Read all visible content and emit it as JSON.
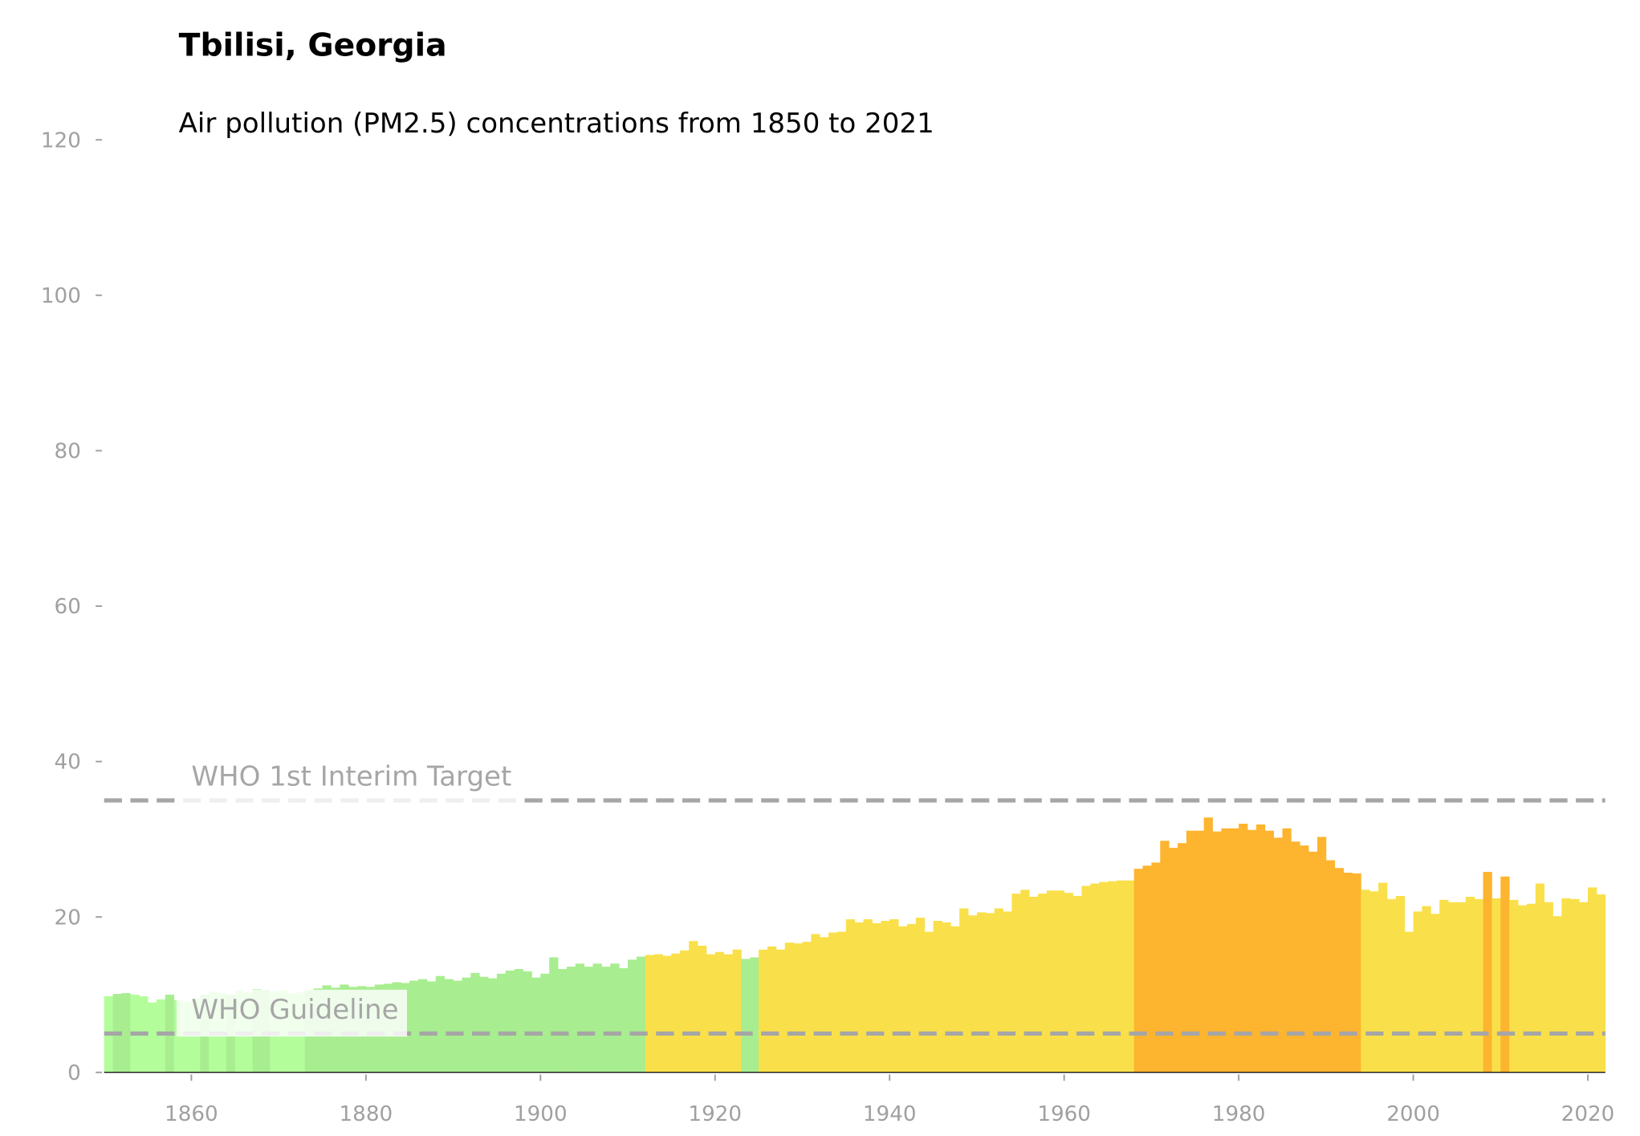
{
  "chart_data": {
    "type": "bar",
    "title": "Tbilisi, Georgia",
    "subtitle": "Air pollution (PM2.5) concentrations from 1850 to 2021",
    "x": [
      1850,
      1851,
      1852,
      1853,
      1854,
      1855,
      1856,
      1857,
      1858,
      1859,
      1860,
      1861,
      1862,
      1863,
      1864,
      1865,
      1866,
      1867,
      1868,
      1869,
      1870,
      1871,
      1872,
      1873,
      1874,
      1875,
      1876,
      1877,
      1878,
      1879,
      1880,
      1881,
      1882,
      1883,
      1884,
      1885,
      1886,
      1887,
      1888,
      1889,
      1890,
      1891,
      1892,
      1893,
      1894,
      1895,
      1896,
      1897,
      1898,
      1899,
      1900,
      1901,
      1902,
      1903,
      1904,
      1905,
      1906,
      1907,
      1908,
      1909,
      1910,
      1911,
      1912,
      1913,
      1914,
      1915,
      1916,
      1917,
      1918,
      1919,
      1920,
      1921,
      1922,
      1923,
      1924,
      1925,
      1926,
      1927,
      1928,
      1929,
      1930,
      1931,
      1932,
      1933,
      1934,
      1935,
      1936,
      1937,
      1938,
      1939,
      1940,
      1941,
      1942,
      1943,
      1944,
      1945,
      1946,
      1947,
      1948,
      1949,
      1950,
      1951,
      1952,
      1953,
      1954,
      1955,
      1956,
      1957,
      1958,
      1959,
      1960,
      1961,
      1962,
      1963,
      1964,
      1965,
      1966,
      1967,
      1968,
      1969,
      1970,
      1971,
      1972,
      1973,
      1974,
      1975,
      1976,
      1977,
      1978,
      1979,
      1980,
      1981,
      1982,
      1983,
      1984,
      1985,
      1986,
      1987,
      1988,
      1989,
      1990,
      1991,
      1992,
      1993,
      1994,
      1995,
      1996,
      1997,
      1998,
      1999,
      2000,
      2001,
      2002,
      2003,
      2004,
      2005,
      2006,
      2007,
      2008,
      2009,
      2010,
      2011,
      2012,
      2013,
      2014,
      2015,
      2016,
      2017,
      2018,
      2019,
      2020,
      2021
    ],
    "series": [
      {
        "values": [
          9.8,
          10.1,
          10.2,
          10.0,
          9.8,
          9.0,
          9.4,
          10.0,
          9.3,
          9.1,
          9.5,
          10.0,
          10.4,
          10.2,
          10.0,
          10.5,
          10.3,
          10.7,
          10.6,
          10.4,
          10.6,
          10.2,
          10.3,
          10.6,
          10.8,
          11.2,
          10.9,
          11.3,
          11.0,
          11.1,
          11.0,
          11.3,
          11.4,
          11.6,
          11.5,
          11.8,
          12.0,
          11.7,
          12.4,
          12.0,
          11.8,
          12.2,
          12.8,
          12.3,
          12.1,
          12.7,
          13.1,
          13.3,
          13.0,
          12.2,
          12.7,
          14.8,
          13.3,
          13.6,
          14.0,
          13.6,
          14.0,
          13.6,
          14.0,
          13.4,
          14.5,
          14.9,
          15.1,
          15.2,
          15.0,
          15.3,
          15.7,
          16.9,
          16.3,
          15.2,
          15.5,
          15.2,
          15.8,
          14.6,
          14.8,
          15.8,
          16.2,
          15.8,
          16.7,
          16.6,
          16.8,
          17.8,
          17.4,
          18.0,
          18.1,
          19.7,
          19.3,
          19.7,
          19.2,
          19.5,
          19.7,
          18.8,
          19.1,
          19.9,
          18.1,
          19.5,
          19.3,
          18.8,
          21.1,
          20.2,
          20.6,
          20.5,
          21.1,
          20.7,
          23.0,
          23.5,
          22.6,
          23.0,
          23.4,
          23.4,
          23.1,
          22.7,
          24.0,
          24.3,
          24.5,
          24.6,
          24.7,
          24.7,
          26.2,
          26.6,
          27.0,
          29.8,
          28.9,
          29.5,
          31.1,
          31.1,
          32.8,
          31.0,
          31.4,
          31.4,
          32.0,
          31.2,
          31.9,
          31.1,
          30.2,
          31.4,
          29.7,
          29.2,
          28.4,
          30.3,
          27.3,
          26.3,
          25.7,
          25.6,
          23.5,
          23.3,
          24.4,
          22.3,
          22.7,
          18.1,
          20.7,
          21.4,
          20.4,
          22.2,
          21.9,
          21.9,
          22.6,
          22.3,
          25.8,
          22.4,
          25.2,
          22.2,
          21.5,
          21.7,
          24.3,
          21.9,
          20.1,
          22.4,
          22.3,
          21.9,
          23.8,
          22.9
        ],
        "colors": [
          "#b3fd9b",
          "#a8ed8f",
          "#a8ed8f",
          "#b3fd9b",
          "#b3fd9b",
          "#b3fd9b",
          "#b3fd9b",
          "#a8ed8f",
          "#b3fd9b",
          "#b3fd9b",
          "#b3fd9b",
          "#a8ed8f",
          "#b3fd9b",
          "#b3fd9b",
          "#a8ed8f",
          "#b3fd9b",
          "#b3fd9b",
          "#a8ed8f",
          "#a8ed8f",
          "#b3fd9b",
          "#b3fd9b",
          "#b3fd9b",
          "#b3fd9b",
          "#a8ed8f",
          "#a8ed8f",
          "#a8ed8f",
          "#a8ed8f",
          "#a8ed8f",
          "#a8ed8f",
          "#a8ed8f",
          "#a8ed8f",
          "#a8ed8f",
          "#a8ed8f",
          "#a8ed8f",
          "#a8ed8f",
          "#a8ed8f",
          "#a8ed8f",
          "#a8ed8f",
          "#a8ed8f",
          "#a8ed8f",
          "#a8ed8f",
          "#a8ed8f",
          "#a8ed8f",
          "#a8ed8f",
          "#a8ed8f",
          "#a8ed8f",
          "#a8ed8f",
          "#a8ed8f",
          "#a8ed8f",
          "#a8ed8f",
          "#a8ed8f",
          "#a8ed8f",
          "#a8ed8f",
          "#a8ed8f",
          "#a8ed8f",
          "#a8ed8f",
          "#a8ed8f",
          "#a8ed8f",
          "#a8ed8f",
          "#a8ed8f",
          "#a8ed8f",
          "#a8ed8f",
          "#f9e04a",
          "#f9e04a",
          "#f9e04a",
          "#f9e04a",
          "#f9e04a",
          "#f9e04a",
          "#f9e04a",
          "#f9e04a",
          "#f9e04a",
          "#f9e04a",
          "#f9e04a",
          "#a8ed8f",
          "#a8ed8f",
          "#f9e04a",
          "#f9e04a",
          "#f9e04a",
          "#f9e04a",
          "#f9e04a",
          "#f9e04a",
          "#f9e04a",
          "#f9e04a",
          "#f9e04a",
          "#f9e04a",
          "#f9e04a",
          "#f9e04a",
          "#f9e04a",
          "#f9e04a",
          "#f9e04a",
          "#f9e04a",
          "#f9e04a",
          "#f9e04a",
          "#f9e04a",
          "#f9e04a",
          "#f9e04a",
          "#f9e04a",
          "#f9e04a",
          "#f9e04a",
          "#f9e04a",
          "#f9e04a",
          "#f9e04a",
          "#f9e04a",
          "#f9e04a",
          "#f9e04a",
          "#f9e04a",
          "#f9e04a",
          "#f9e04a",
          "#f9e04a",
          "#f9e04a",
          "#f9e04a",
          "#f9e04a",
          "#f9e04a",
          "#f9e04a",
          "#f9e04a",
          "#f9e04a",
          "#f9e04a",
          "#f9e04a",
          "#fdb42f",
          "#fdb42f",
          "#fdb42f",
          "#fdb42f",
          "#fdb42f",
          "#fdb42f",
          "#fdb42f",
          "#fdb42f",
          "#fdb42f",
          "#fdb42f",
          "#fdb42f",
          "#fdb42f",
          "#fdb42f",
          "#fdb42f",
          "#fdb42f",
          "#fdb42f",
          "#fdb42f",
          "#fdb42f",
          "#fdb42f",
          "#fdb42f",
          "#fdb42f",
          "#fdb42f",
          "#fdb42f",
          "#fdb42f",
          "#fdb42f",
          "#fdb42f",
          "#f9e04a",
          "#f9e04a",
          "#f9e04a",
          "#f9e04a",
          "#f9e04a",
          "#f9e04a",
          "#f9e04a",
          "#f9e04a",
          "#f9e04a",
          "#f9e04a",
          "#f9e04a",
          "#f9e04a",
          "#f9e04a",
          "#f9e04a",
          "#fdb42f",
          "#f9e04a",
          "#fdb42f",
          "#f9e04a",
          "#f9e04a",
          "#f9e04a",
          "#f9e04a",
          "#f9e04a",
          "#f9e04a",
          "#f9e04a",
          "#f9e04a",
          "#f9e04a",
          "#f9e04a",
          "#f9e04a"
        ]
      }
    ],
    "xlim": [
      1850,
      2022
    ],
    "ylim": [
      0,
      120
    ],
    "xticks": [
      1860,
      1880,
      1900,
      1920,
      1940,
      1960,
      1980,
      2000,
      2020
    ],
    "yticks": [
      0,
      20,
      40,
      60,
      80,
      100,
      120
    ],
    "reference_lines": [
      {
        "value": 35,
        "label": "WHO 1st Interim Target",
        "color": "#a6a6a6"
      },
      {
        "value": 5,
        "label": "WHO Guideline",
        "color": "#a6a6a6"
      }
    ]
  }
}
